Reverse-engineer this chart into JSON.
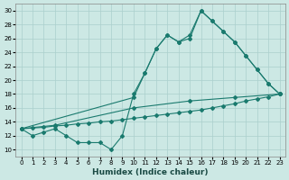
{
  "background_color": "#cce8e4",
  "grid_color": "#aacfcc",
  "line_color": "#1a7a6e",
  "xlabel": "Humidex (Indice chaleur)",
  "xlim": [
    -0.5,
    23.5
  ],
  "ylim": [
    9,
    31
  ],
  "xticks": [
    0,
    1,
    2,
    3,
    4,
    5,
    6,
    7,
    8,
    9,
    10,
    11,
    12,
    13,
    14,
    15,
    16,
    17,
    18,
    19,
    20,
    21,
    22,
    23
  ],
  "yticks": [
    10,
    12,
    14,
    16,
    18,
    20,
    22,
    24,
    26,
    28,
    30
  ],
  "curve1_x": [
    0,
    1,
    2,
    3,
    4,
    5,
    6,
    7,
    8,
    9,
    10,
    11,
    12,
    13,
    14,
    15,
    16,
    17,
    18,
    19,
    20,
    21,
    22,
    23
  ],
  "curve1_y": [
    13,
    12,
    12.5,
    13,
    12,
    11,
    11,
    11,
    10,
    12,
    18,
    21,
    24.5,
    26.5,
    25.5,
    26,
    30,
    28.5,
    27,
    25.5,
    23.5,
    21.5,
    19.5,
    18
  ],
  "curve2_x": [
    0,
    10,
    11,
    12,
    13,
    14,
    15,
    16,
    17,
    18,
    19,
    20,
    21,
    22,
    23
  ],
  "curve2_y": [
    13,
    17.5,
    21,
    24.5,
    26.5,
    25.5,
    26.5,
    30,
    28.5,
    27,
    25.5,
    23.5,
    21.5,
    19.5,
    18
  ],
  "curve3_x": [
    0,
    1,
    2,
    3,
    4,
    5,
    6,
    7,
    8,
    9,
    10,
    11,
    12,
    13,
    14,
    15,
    16,
    17,
    18,
    19,
    20,
    21,
    22,
    23
  ],
  "curve3_y": [
    13,
    13.1,
    13.2,
    13.4,
    13.5,
    13.7,
    13.8,
    14.0,
    14.1,
    14.3,
    14.5,
    14.7,
    14.9,
    15.1,
    15.3,
    15.5,
    15.7,
    16.0,
    16.3,
    16.6,
    17.0,
    17.3,
    17.6,
    18.0
  ],
  "curve4_x": [
    0,
    3,
    10,
    15,
    19,
    23
  ],
  "curve4_y": [
    13,
    13.5,
    16,
    17,
    17.5,
    18
  ]
}
